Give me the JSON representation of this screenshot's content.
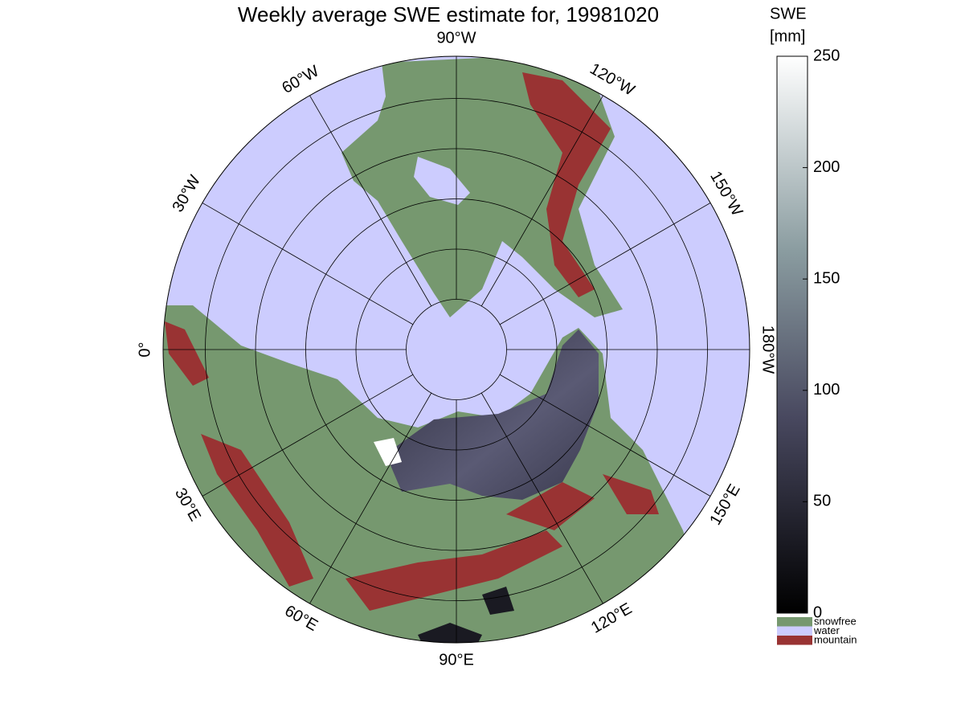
{
  "title": "Weekly average SWE estimate for, 19981020",
  "longitude_labels": [
    "0°",
    "30°W",
    "60°W",
    "90°W",
    "120°W",
    "150°W",
    "180°W",
    "150°E",
    "120°E",
    "90°E",
    "60°E",
    "30°E"
  ],
  "colorbar": {
    "title": [
      "SWE",
      "[mm]"
    ],
    "lim": [
      0,
      250
    ],
    "ticks": [
      0,
      50,
      100,
      150,
      200,
      250
    ]
  },
  "legend": [
    {
      "label": "snowfree",
      "color": "#76986f"
    },
    {
      "label": "water",
      "color": "#ccccff"
    },
    {
      "label": "mountain",
      "color": "#993333"
    }
  ]
}
